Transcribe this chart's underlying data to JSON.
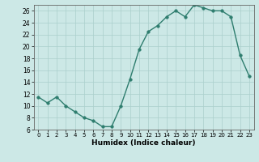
{
  "x": [
    0,
    1,
    2,
    3,
    4,
    5,
    6,
    7,
    8,
    9,
    10,
    11,
    12,
    13,
    14,
    15,
    16,
    17,
    18,
    19,
    20,
    21,
    22,
    23
  ],
  "y": [
    11.5,
    10.5,
    11.5,
    10.0,
    9.0,
    8.0,
    7.5,
    6.5,
    6.5,
    10.0,
    14.5,
    19.5,
    22.5,
    23.5,
    25.0,
    26.0,
    25.0,
    27.0,
    26.5,
    26.0,
    26.0,
    25.0,
    18.5,
    15.0
  ],
  "xlabel": "Humidex (Indice chaleur)",
  "ylim": [
    6,
    27
  ],
  "xlim": [
    -0.5,
    23.5
  ],
  "yticks": [
    6,
    8,
    10,
    12,
    14,
    16,
    18,
    20,
    22,
    24,
    26
  ],
  "xticks": [
    0,
    1,
    2,
    3,
    4,
    5,
    6,
    7,
    8,
    9,
    10,
    11,
    12,
    13,
    14,
    15,
    16,
    17,
    18,
    19,
    20,
    21,
    22,
    23
  ],
  "line_color": "#2e7d6e",
  "bg_color": "#cce8e6",
  "grid_color": "#aacfcc",
  "marker_size": 2.5,
  "line_width": 1.0,
  "xtick_fontsize": 5,
  "ytick_fontsize": 5.5,
  "xlabel_fontsize": 6.5
}
